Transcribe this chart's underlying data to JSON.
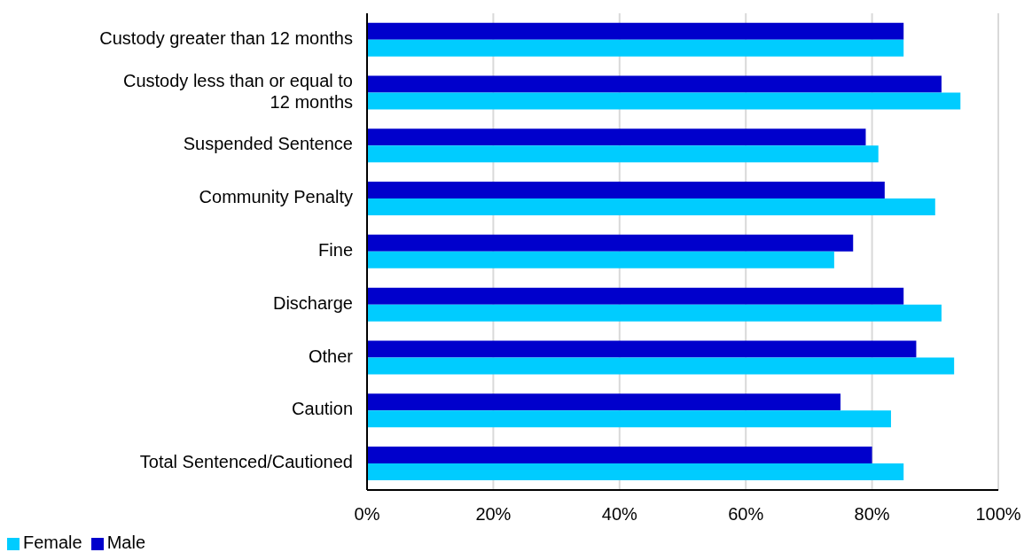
{
  "chart_data": {
    "type": "bar",
    "orientation": "horizontal",
    "categories": [
      "Custody greater than 12 months",
      "Custody less than or equal to 12 months",
      "Suspended Sentence",
      "Community Penalty",
      "Fine",
      "Discharge",
      "Other",
      "Caution",
      "Total Sentenced/Cautioned"
    ],
    "series": [
      {
        "name": "Male",
        "color": "#0000cc",
        "values": [
          85,
          91,
          79,
          82,
          77,
          85,
          87,
          75,
          80
        ]
      },
      {
        "name": "Female",
        "color": "#00ccff",
        "values": [
          85,
          94,
          81,
          90,
          74,
          91,
          93,
          83,
          85
        ]
      }
    ],
    "xlim": [
      0,
      100
    ],
    "xticks": [
      {
        "value": 0,
        "label": "0%"
      },
      {
        "value": 20,
        "label": "20%"
      },
      {
        "value": 40,
        "label": "40%"
      },
      {
        "value": 60,
        "label": "60%"
      },
      {
        "value": 80,
        "label": "80%"
      },
      {
        "value": 100,
        "label": "100%"
      }
    ],
    "grid": "x",
    "legend": "bottom left"
  }
}
